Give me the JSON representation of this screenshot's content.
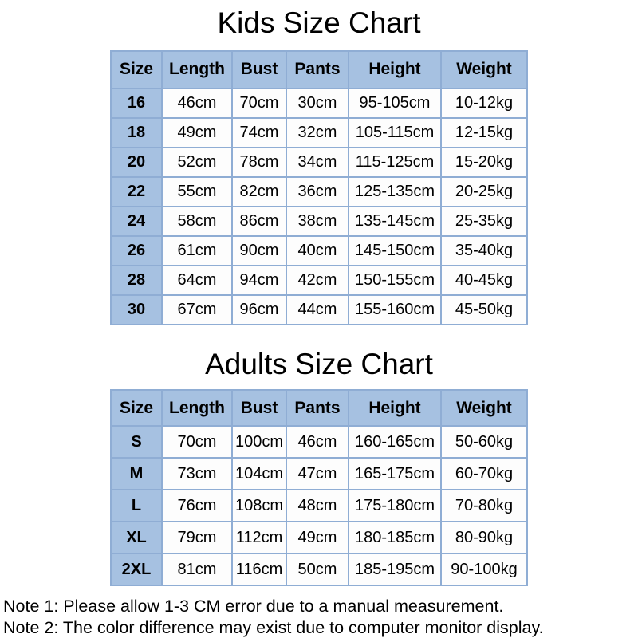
{
  "chart_data": [
    {
      "type": "table",
      "title": "Kids Size Chart",
      "columns": [
        "Size",
        "Length",
        "Bust",
        "Pants",
        "Height",
        "Weight"
      ],
      "rows": [
        [
          "16",
          "46cm",
          "70cm",
          "30cm",
          "95-105cm",
          "10-12kg"
        ],
        [
          "18",
          "49cm",
          "74cm",
          "32cm",
          "105-115cm",
          "12-15kg"
        ],
        [
          "20",
          "52cm",
          "78cm",
          "34cm",
          "115-125cm",
          "15-20kg"
        ],
        [
          "22",
          "55cm",
          "82cm",
          "36cm",
          "125-135cm",
          "20-25kg"
        ],
        [
          "24",
          "58cm",
          "86cm",
          "38cm",
          "135-145cm",
          "25-35kg"
        ],
        [
          "26",
          "61cm",
          "90cm",
          "40cm",
          "145-150cm",
          "35-40kg"
        ],
        [
          "28",
          "64cm",
          "94cm",
          "42cm",
          "150-155cm",
          "40-45kg"
        ],
        [
          "30",
          "67cm",
          "96cm",
          "44cm",
          "155-160cm",
          "45-50kg"
        ]
      ]
    },
    {
      "type": "table",
      "title": "Adults Size Chart",
      "columns": [
        "Size",
        "Length",
        "Bust",
        "Pants",
        "Height",
        "Weight"
      ],
      "rows": [
        [
          "S",
          "70cm",
          "100cm",
          "46cm",
          "160-165cm",
          "50-60kg"
        ],
        [
          "M",
          "73cm",
          "104cm",
          "47cm",
          "165-175cm",
          "60-70kg"
        ],
        [
          "L",
          "76cm",
          "108cm",
          "48cm",
          "175-180cm",
          "70-80kg"
        ],
        [
          "XL",
          "79cm",
          "112cm",
          "49cm",
          "180-185cm",
          "80-90kg"
        ],
        [
          "2XL",
          "81cm",
          "116cm",
          "50cm",
          "185-195cm",
          "90-100kg"
        ]
      ]
    }
  ],
  "notes": {
    "note1": "Note 1: Please allow 1-3 CM error due to a manual measurement.",
    "note2": "Note 2: The color difference may exist due to computer monitor display."
  },
  "colors": {
    "header_fill": "#a6c1e1",
    "border": "#8fadd4",
    "cell_fill": "#fdfdfd",
    "text": "#000000",
    "background": "#ffffff"
  }
}
